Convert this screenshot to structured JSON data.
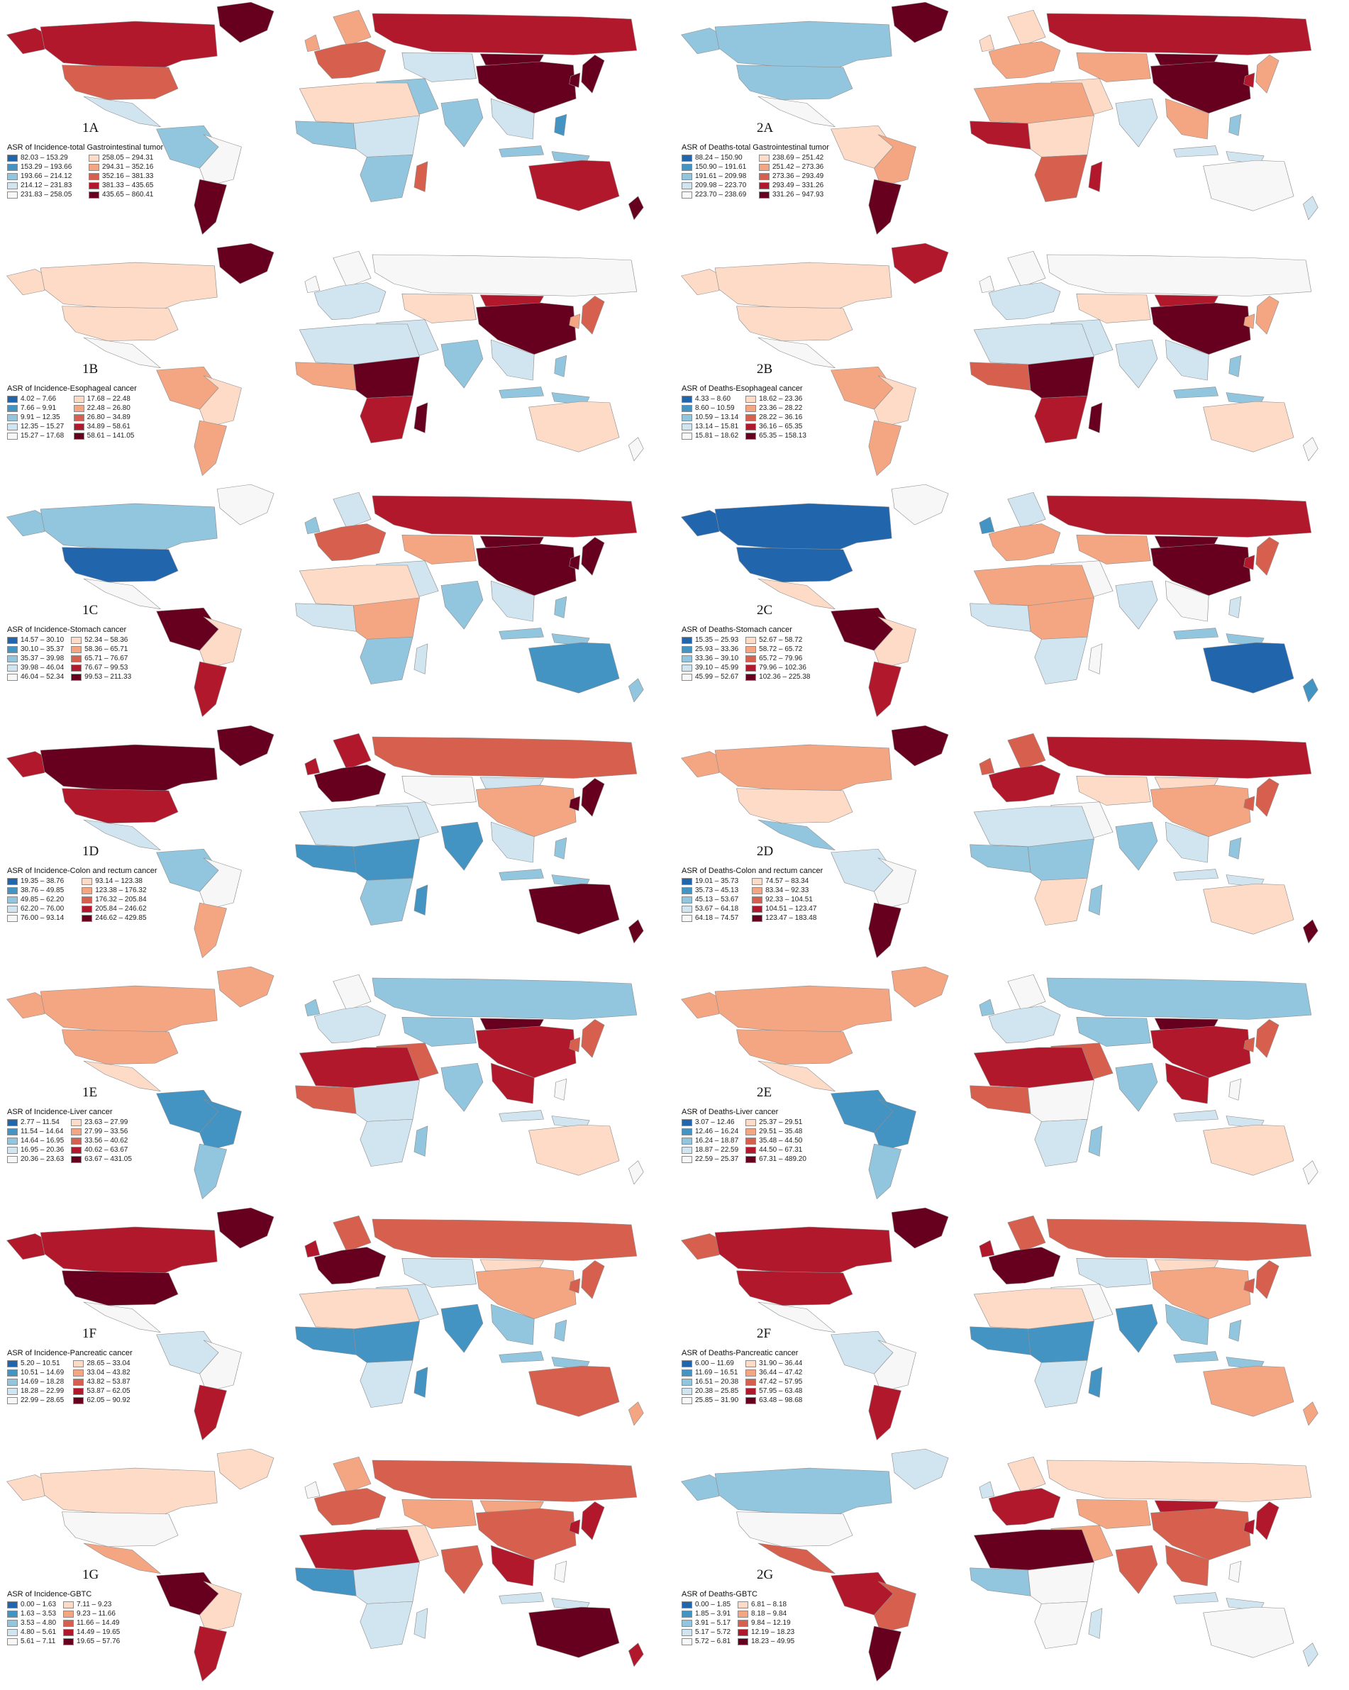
{
  "palette": [
    "#2166ac",
    "#4393c3",
    "#92c5de",
    "#d1e5f0",
    "#f7f7f7",
    "#fddbc7",
    "#f4a582",
    "#d6604d",
    "#b2182b",
    "#67001f"
  ],
  "panels": [
    {
      "label": "1A",
      "legend_title": "ASR of Incidence-total Gastrointestinal tumor",
      "ranges": [
        "82.03 – 153.29",
        "153.29 – 193.66",
        "193.66 – 214.12",
        "214.12 – 231.83",
        "231.83 – 258.05",
        "258.05 – 294.31",
        "294.31 – 352.16",
        "352.16 – 381.33",
        "381.33 – 435.65",
        "435.65 – 860.41"
      ],
      "regions": {
        "greenland": 9,
        "alaska": 8,
        "canada": 8,
        "usa": 7,
        "mexico": 3,
        "samerica_n": 2,
        "brazil": 4,
        "argentina": 9,
        "europe": 7,
        "uk": 6,
        "scandinavia": 6,
        "russia": 8,
        "centralasia": 3,
        "mideast": 2,
        "china": 9,
        "mongolia": 9,
        "india": 2,
        "seasia": 3,
        "indonesia": 2,
        "indonesia2": 2,
        "philippines": 1,
        "japan": 9,
        "korea": 9,
        "africa_n": 5,
        "africa_w": 2,
        "africa_e": 3,
        "africa_s": 2,
        "madagascar": 7,
        "australia": 8,
        "newzealand": 9
      }
    },
    {
      "label": "2A",
      "legend_title": "ASR of Deaths-total Gastrointestinal tumor",
      "ranges": [
        "88.24 – 150.90",
        "150.90 – 191.61",
        "191.61 – 209.98",
        "209.98 – 223.70",
        "223.70 – 238.69",
        "238.69 – 251.42",
        "251.42 – 273.36",
        "273.36 – 293.49",
        "293.49 – 331.26",
        "331.26 – 947.93"
      ],
      "regions": {
        "greenland": 9,
        "alaska": 2,
        "canada": 2,
        "usa": 2,
        "mexico": 4,
        "samerica_n": 5,
        "brazil": 6,
        "argentina": 9,
        "europe": 6,
        "uk": 5,
        "scandinavia": 5,
        "russia": 8,
        "centralasia": 6,
        "mideast": 5,
        "china": 9,
        "mongolia": 9,
        "india": 3,
        "seasia": 6,
        "indonesia": 3,
        "indonesia2": 3,
        "philippines": 2,
        "japan": 6,
        "korea": 8,
        "africa_n": 6,
        "africa_w": 8,
        "africa_e": 5,
        "africa_s": 7,
        "madagascar": 8,
        "australia": 4,
        "newzealand": 3
      }
    },
    {
      "label": "1B",
      "legend_title": "ASR of Incidence-Esophageal cancer",
      "ranges": [
        "4.02 – 7.66",
        "7.66 – 9.91",
        "9.91 – 12.35",
        "12.35 – 15.27",
        "15.27 – 17.68",
        "17.68 – 22.48",
        "22.48 – 26.80",
        "26.80 – 34.89",
        "34.89 – 58.61",
        "58.61 – 141.05"
      ],
      "regions": {
        "greenland": 9,
        "alaska": 5,
        "canada": 5,
        "usa": 5,
        "mexico": 4,
        "samerica_n": 6,
        "brazil": 5,
        "argentina": 6,
        "europe": 3,
        "uk": 4,
        "scandinavia": 4,
        "russia": 4,
        "centralasia": 5,
        "mideast": 3,
        "china": 9,
        "mongolia": 8,
        "india": 2,
        "seasia": 3,
        "indonesia": 2,
        "indonesia2": 2,
        "philippines": 2,
        "japan": 7,
        "korea": 6,
        "africa_n": 3,
        "africa_w": 6,
        "africa_e": 9,
        "africa_s": 8,
        "madagascar": 9,
        "australia": 5,
        "newzealand": 4
      }
    },
    {
      "label": "2B",
      "legend_title": "ASR of Deaths-Esophageal cancer",
      "ranges": [
        "4.33 – 8.60",
        "8.60 – 10.59",
        "10.59 – 13.14",
        "13.14 – 15.81",
        "15.81 – 18.62",
        "18.62 – 23.36",
        "23.36 – 28.22",
        "28.22 – 36.16",
        "36.16 – 65.35",
        "65.35 – 158.13"
      ],
      "regions": {
        "greenland": 8,
        "alaska": 5,
        "canada": 5,
        "usa": 5,
        "mexico": 4,
        "samerica_n": 6,
        "brazil": 5,
        "argentina": 6,
        "europe": 3,
        "uk": 4,
        "scandinavia": 4,
        "russia": 4,
        "centralasia": 5,
        "mideast": 3,
        "china": 9,
        "mongolia": 8,
        "india": 3,
        "seasia": 3,
        "indonesia": 2,
        "indonesia2": 2,
        "philippines": 2,
        "japan": 6,
        "korea": 6,
        "africa_n": 3,
        "africa_w": 7,
        "africa_e": 9,
        "africa_s": 8,
        "madagascar": 9,
        "australia": 5,
        "newzealand": 4
      }
    },
    {
      "label": "1C",
      "legend_title": "ASR of Incidence-Stomach cancer",
      "ranges": [
        "14.57 – 30.10",
        "30.10 – 35.37",
        "35.37 – 39.98",
        "39.98 – 46.04",
        "46.04 – 52.34",
        "52.34 – 58.36",
        "58.36 – 65.71",
        "65.71 – 76.67",
        "76.67 – 99.53",
        "99.53 – 211.33"
      ],
      "regions": {
        "greenland": 4,
        "alaska": 2,
        "canada": 2,
        "usa": 0,
        "mexico": 4,
        "samerica_n": 9,
        "brazil": 5,
        "argentina": 8,
        "europe": 7,
        "uk": 2,
        "scandinavia": 3,
        "russia": 8,
        "centralasia": 6,
        "mideast": 3,
        "china": 9,
        "mongolia": 9,
        "india": 2,
        "seasia": 3,
        "indonesia": 2,
        "indonesia2": 2,
        "philippines": 2,
        "japan": 9,
        "korea": 9,
        "africa_n": 5,
        "africa_w": 3,
        "africa_e": 6,
        "africa_s": 2,
        "madagascar": 3,
        "australia": 1,
        "newzealand": 2
      }
    },
    {
      "label": "2C",
      "legend_title": "ASR of Deaths-Stomach cancer",
      "ranges": [
        "15.35 – 25.93",
        "25.93 – 33.36",
        "33.36 – 39.10",
        "39.10 – 45.99",
        "45.99 – 52.67",
        "52.67 – 58.72",
        "58.72 – 65.72",
        "65.72 – 79.96",
        "79.96 – 102.36",
        "102.36 – 225.38"
      ],
      "regions": {
        "greenland": 4,
        "alaska": 0,
        "canada": 0,
        "usa": 0,
        "mexico": 5,
        "samerica_n": 9,
        "brazil": 5,
        "argentina": 8,
        "europe": 6,
        "uk": 1,
        "scandinavia": 3,
        "russia": 8,
        "centralasia": 6,
        "mideast": 4,
        "china": 9,
        "mongolia": 9,
        "india": 3,
        "seasia": 4,
        "indonesia": 2,
        "indonesia2": 2,
        "philippines": 3,
        "japan": 7,
        "korea": 8,
        "africa_n": 6,
        "africa_w": 3,
        "africa_e": 6,
        "africa_s": 3,
        "madagascar": 4,
        "australia": 0,
        "newzealand": 1
      }
    },
    {
      "label": "1D",
      "legend_title": "ASR of Incidence-Colon and rectum cancer",
      "ranges": [
        "19.35 – 38.76",
        "38.76 – 49.85",
        "49.85 – 62.20",
        "62.20 – 76.00",
        "76.00 – 93.14",
        "93.14 – 123.38",
        "123.38 – 176.32",
        "176.32 – 205.84",
        "205.84 – 246.62",
        "246.62 – 429.85"
      ],
      "regions": {
        "greenland": 9,
        "alaska": 8,
        "canada": 9,
        "usa": 8,
        "mexico": 3,
        "samerica_n": 2,
        "brazil": 4,
        "argentina": 6,
        "europe": 9,
        "uk": 8,
        "scandinavia": 8,
        "russia": 7,
        "centralasia": 4,
        "mideast": 3,
        "china": 6,
        "mongolia": 3,
        "india": 1,
        "seasia": 3,
        "indonesia": 2,
        "indonesia2": 2,
        "philippines": 2,
        "japan": 9,
        "korea": 9,
        "africa_n": 3,
        "africa_w": 1,
        "africa_e": 1,
        "africa_s": 2,
        "madagascar": 1,
        "australia": 9,
        "newzealand": 9
      }
    },
    {
      "label": "2D",
      "legend_title": "ASR of Deaths-Colon and rectum cancer",
      "ranges": [
        "19.01 – 35.73",
        "35.73 – 45.13",
        "45.13 – 53.67",
        "53.67 – 64.18",
        "64.18 – 74.57",
        "74.57 – 83.34",
        "83.34 – 92.33",
        "92.33 – 104.51",
        "104.51 – 123.47",
        "123.47 – 183.48"
      ],
      "regions": {
        "greenland": 9,
        "alaska": 6,
        "canada": 6,
        "usa": 5,
        "mexico": 2,
        "samerica_n": 3,
        "brazil": 4,
        "argentina": 9,
        "europe": 8,
        "uk": 7,
        "scandinavia": 7,
        "russia": 8,
        "centralasia": 5,
        "mideast": 4,
        "china": 6,
        "mongolia": 5,
        "india": 2,
        "seasia": 3,
        "indonesia": 3,
        "indonesia2": 3,
        "philippines": 2,
        "japan": 7,
        "korea": 7,
        "africa_n": 3,
        "africa_w": 2,
        "africa_e": 2,
        "africa_s": 5,
        "madagascar": 2,
        "australia": 5,
        "newzealand": 9
      }
    },
    {
      "label": "1E",
      "legend_title": "ASR of Incidence-Liver cancer",
      "ranges": [
        "2.77 – 11.54",
        "11.54 – 14.64",
        "14.64 – 16.95",
        "16.95 – 20.36",
        "20.36 – 23.63",
        "23.63 – 27.99",
        "27.99 – 33.56",
        "33.56 – 40.62",
        "40.62 – 63.67",
        "63.67 – 431.05"
      ],
      "regions": {
        "greenland": 6,
        "alaska": 6,
        "canada": 6,
        "usa": 6,
        "mexico": 5,
        "samerica_n": 1,
        "brazil": 1,
        "argentina": 2,
        "europe": 3,
        "uk": 2,
        "scandinavia": 4,
        "russia": 2,
        "centralasia": 2,
        "mideast": 7,
        "china": 8,
        "mongolia": 9,
        "india": 2,
        "seasia": 8,
        "indonesia": 3,
        "indonesia2": 3,
        "philippines": 4,
        "japan": 7,
        "korea": 7,
        "africa_n": 8,
        "africa_w": 7,
        "africa_e": 3,
        "africa_s": 3,
        "madagascar": 2,
        "australia": 5,
        "newzealand": 4
      }
    },
    {
      "label": "2E",
      "legend_title": "ASR of Deaths-Liver cancer",
      "ranges": [
        "3.07 – 12.46",
        "12.46 – 16.24",
        "16.24 – 18.87",
        "18.87 – 22.59",
        "22.59 – 25.37",
        "25.37 – 29.51",
        "29.51 – 35.48",
        "35.48 – 44.50",
        "44.50 – 67.31",
        "67.31 – 489.20"
      ],
      "regions": {
        "greenland": 6,
        "alaska": 6,
        "canada": 6,
        "usa": 6,
        "mexico": 5,
        "samerica_n": 1,
        "brazil": 1,
        "argentina": 2,
        "europe": 3,
        "uk": 2,
        "scandinavia": 4,
        "russia": 2,
        "centralasia": 2,
        "mideast": 7,
        "china": 8,
        "mongolia": 9,
        "india": 2,
        "seasia": 8,
        "indonesia": 3,
        "indonesia2": 3,
        "philippines": 4,
        "japan": 7,
        "korea": 7,
        "africa_n": 8,
        "africa_w": 7,
        "africa_e": 4,
        "africa_s": 3,
        "madagascar": 2,
        "australia": 5,
        "newzealand": 4
      }
    },
    {
      "label": "1F",
      "legend_title": "ASR of Incidence-Pancreatic cancer",
      "ranges": [
        "5.20 – 10.51",
        "10.51 – 14.69",
        "14.69 – 18.28",
        "18.28 – 22.99",
        "22.99 – 28.65",
        "28.65 – 33.04",
        "33.04 – 43.82",
        "43.82 – 53.87",
        "53.87 – 62.05",
        "62.05 – 90.92"
      ],
      "regions": {
        "greenland": 9,
        "alaska": 8,
        "canada": 8,
        "usa": 9,
        "mexico": 4,
        "samerica_n": 3,
        "brazil": 4,
        "argentina": 8,
        "europe": 9,
        "uk": 8,
        "scandinavia": 7,
        "russia": 7,
        "centralasia": 3,
        "mideast": 3,
        "china": 6,
        "mongolia": 5,
        "india": 1,
        "seasia": 2,
        "indonesia": 2,
        "indonesia2": 2,
        "philippines": 2,
        "japan": 7,
        "korea": 7,
        "africa_n": 5,
        "africa_w": 1,
        "africa_e": 1,
        "africa_s": 3,
        "madagascar": 1,
        "australia": 7,
        "newzealand": 6
      }
    },
    {
      "label": "2F",
      "legend_title": "ASR of Deaths-Pancreatic cancer",
      "ranges": [
        "6.00 – 11.69",
        "11.69 – 16.51",
        "16.51 – 20.38",
        "20.38 – 25.85",
        "25.85 – 31.90",
        "31.90 – 36.44",
        "36.44 – 47.42",
        "47.42 – 57.95",
        "57.95 – 63.48",
        "63.48 – 98.68"
      ],
      "regions": {
        "greenland": 9,
        "alaska": 7,
        "canada": 8,
        "usa": 8,
        "mexico": 4,
        "samerica_n": 3,
        "brazil": 4,
        "argentina": 8,
        "europe": 9,
        "uk": 8,
        "scandinavia": 7,
        "russia": 7,
        "centralasia": 3,
        "mideast": 4,
        "china": 6,
        "mongolia": 5,
        "india": 1,
        "seasia": 2,
        "indonesia": 2,
        "indonesia2": 2,
        "philippines": 2,
        "japan": 7,
        "korea": 7,
        "africa_n": 5,
        "africa_w": 1,
        "africa_e": 1,
        "africa_s": 3,
        "madagascar": 1,
        "australia": 6,
        "newzealand": 6
      }
    },
    {
      "label": "1G",
      "legend_title": "ASR of Incidence-GBTC",
      "ranges": [
        "0.00 – 1.63",
        "1.63 – 3.53",
        "3.53 – 4.80",
        "4.80 – 5.61",
        "5.61 – 7.11",
        "7.11 – 9.23",
        "9.23 – 11.66",
        "11.66 – 14.49",
        "14.49 – 19.65",
        "19.65 – 57.76"
      ],
      "regions": {
        "greenland": 5,
        "alaska": 5,
        "canada": 5,
        "usa": 4,
        "mexico": 6,
        "samerica_n": 9,
        "brazil": 5,
        "argentina": 8,
        "europe": 7,
        "uk": 4,
        "scandinavia": 6,
        "russia": 7,
        "centralasia": 6,
        "mideast": 5,
        "china": 7,
        "mongolia": 6,
        "india": 7,
        "seasia": 8,
        "indonesia": 3,
        "indonesia2": 3,
        "philippines": 4,
        "japan": 8,
        "korea": 8,
        "africa_n": 8,
        "africa_w": 1,
        "africa_e": 3,
        "africa_s": 3,
        "madagascar": 3,
        "australia": 9,
        "newzealand": 8
      }
    },
    {
      "label": "2G",
      "legend_title": "ASR of Deaths-GBTC",
      "ranges": [
        "0.00 – 1.85",
        "1.85 – 3.91",
        "3.91 – 5.17",
        "5.17 – 5.72",
        "5.72 – 6.81",
        "6.81 – 8.18",
        "8.18 – 9.84",
        "9.84 – 12.19",
        "12.19 – 18.23",
        "18.23 – 49.95"
      ],
      "regions": {
        "greenland": 3,
        "alaska": 2,
        "canada": 2,
        "usa": 4,
        "mexico": 7,
        "samerica_n": 8,
        "brazil": 7,
        "argentina": 9,
        "europe": 8,
        "uk": 3,
        "scandinavia": 5,
        "russia": 5,
        "centralasia": 6,
        "mideast": 6,
        "china": 7,
        "mongolia": 8,
        "india": 7,
        "seasia": 7,
        "indonesia": 3,
        "indonesia2": 3,
        "philippines": 4,
        "japan": 8,
        "korea": 8,
        "africa_n": 9,
        "africa_w": 2,
        "africa_e": 4,
        "africa_s": 4,
        "madagascar": 3,
        "australia": 4,
        "newzealand": 3
      }
    }
  ]
}
